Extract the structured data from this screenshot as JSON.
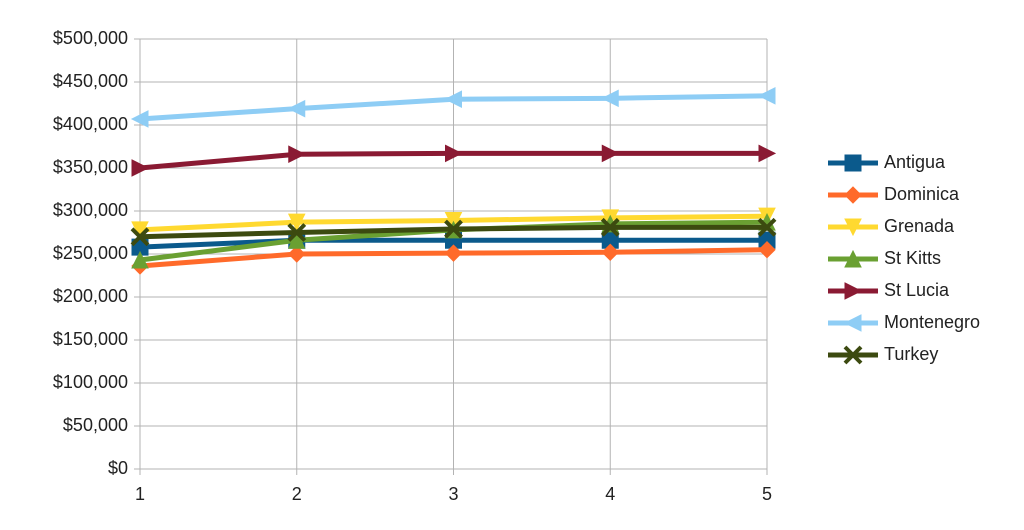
{
  "chart_data": {
    "type": "line",
    "x": [
      1,
      2,
      3,
      4,
      5
    ],
    "xlim": [
      1,
      5
    ],
    "xticks": [
      1,
      2,
      3,
      4,
      5
    ],
    "ylim": [
      0,
      500000
    ],
    "yticks": [
      {
        "value": 0,
        "label": "$0"
      },
      {
        "value": 50000,
        "label": "$50,000"
      },
      {
        "value": 100000,
        "label": "$100,000"
      },
      {
        "value": 150000,
        "label": "$150,000"
      },
      {
        "value": 200000,
        "label": "$200,000"
      },
      {
        "value": 250000,
        "label": "$250,000"
      },
      {
        "value": 300000,
        "label": "$300,000"
      },
      {
        "value": 350000,
        "label": "$350,000"
      },
      {
        "value": 400000,
        "label": "$400,000"
      },
      {
        "value": 450000,
        "label": "$450,000"
      },
      {
        "value": 500000,
        "label": "$500,000"
      }
    ],
    "grid": true,
    "legend": "right",
    "series": [
      {
        "name": "Antigua",
        "color": "#0b5a8c",
        "marker": "square",
        "values": [
          258000,
          266000,
          266000,
          266000,
          266000
        ]
      },
      {
        "name": "Dominica",
        "color": "#ff6a2a",
        "marker": "diamond",
        "values": [
          236000,
          250000,
          251000,
          252000,
          255000
        ]
      },
      {
        "name": "Grenada",
        "color": "#ffd930",
        "marker": "triangle-down",
        "values": [
          278000,
          287000,
          289000,
          292000,
          294000
        ]
      },
      {
        "name": "St Kitts",
        "color": "#6aa032",
        "marker": "triangle-up",
        "values": [
          243000,
          266000,
          278000,
          285000,
          287000
        ]
      },
      {
        "name": "St Lucia",
        "color": "#8a1a33",
        "marker": "triangle-right",
        "values": [
          350000,
          366000,
          367000,
          367000,
          367000
        ]
      },
      {
        "name": "Montenegro",
        "color": "#8ecdf5",
        "marker": "triangle-left",
        "values": [
          407000,
          419000,
          430000,
          431000,
          434000
        ]
      },
      {
        "name": "Turkey",
        "color": "#3c4a10",
        "marker": "x",
        "values": [
          270000,
          275000,
          279000,
          281000,
          281000
        ]
      }
    ]
  }
}
